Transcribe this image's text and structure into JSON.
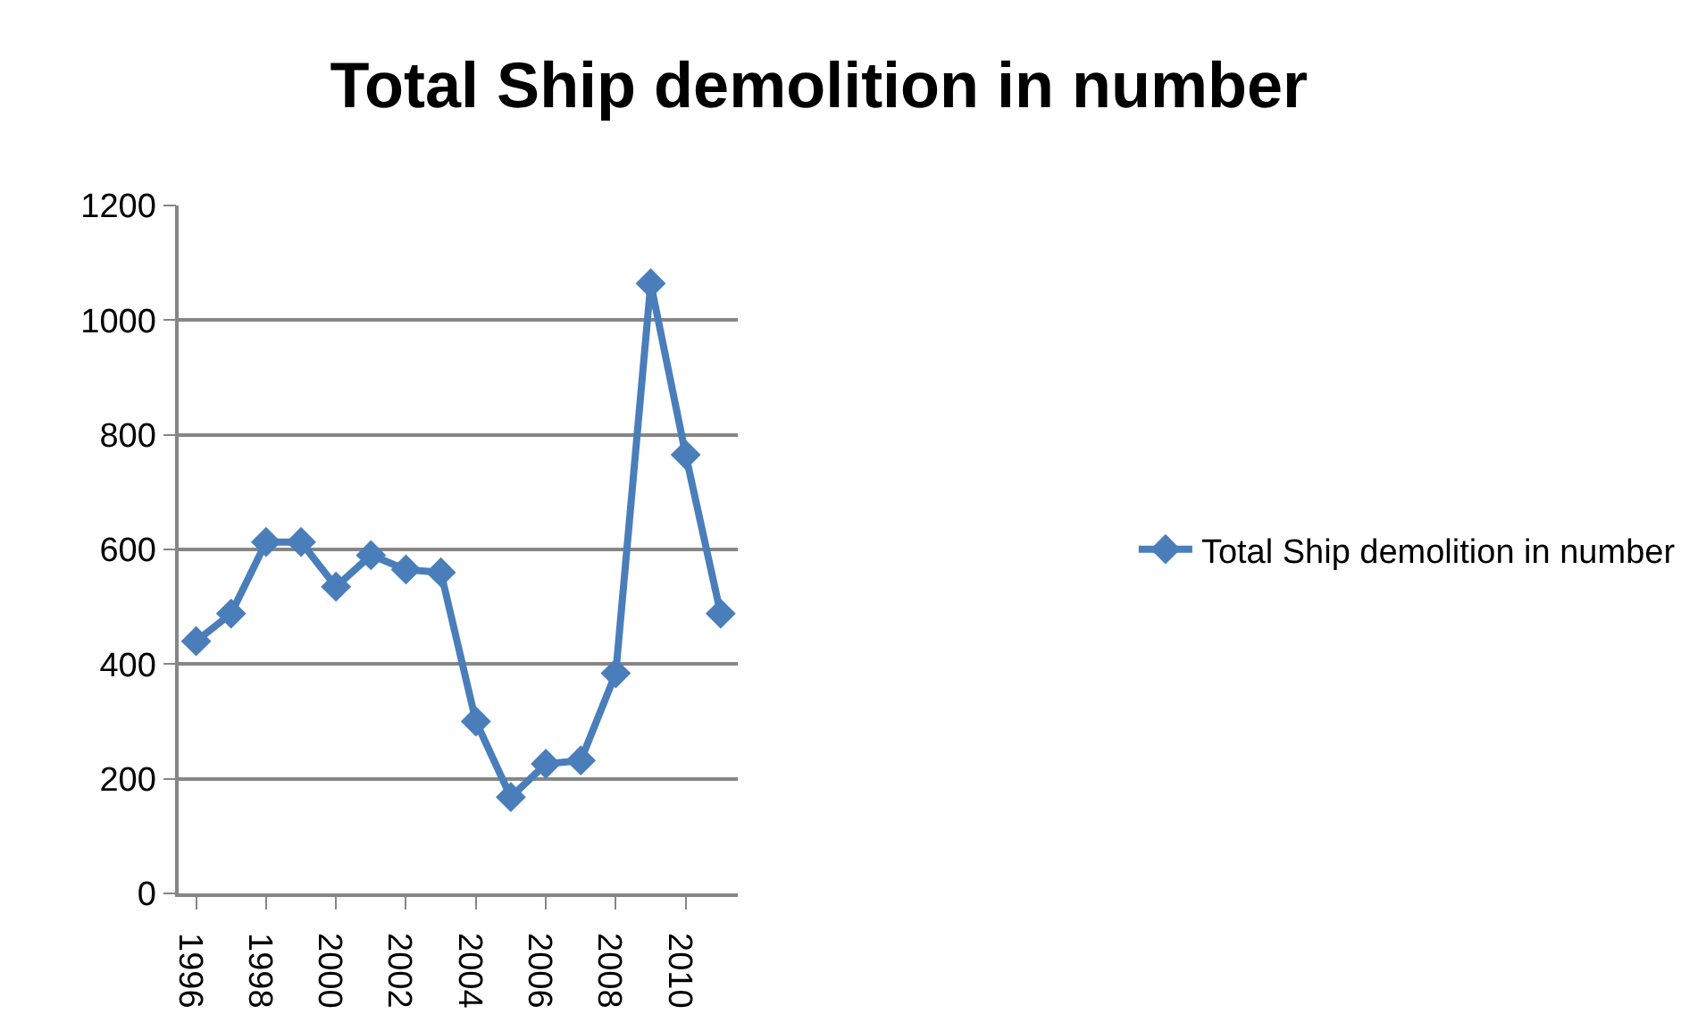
{
  "chart_data": {
    "type": "line",
    "title": "Total Ship demolition in number",
    "categories": [
      "1996",
      null,
      "1998",
      null,
      "2000",
      null,
      "2002",
      null,
      "2004",
      null,
      "2006",
      null,
      "2008",
      null,
      "2010",
      null
    ],
    "series": [
      {
        "name": "Total Ship demolition in number",
        "color": "#4a7ebb",
        "values": [
          440,
          488,
          613,
          613,
          535,
          590,
          565,
          560,
          300,
          168,
          226,
          232,
          384,
          1064,
          765,
          488
        ]
      }
    ],
    "ylim": [
      0,
      1200
    ],
    "yticks": [
      0,
      200,
      400,
      600,
      800,
      1000,
      1200
    ],
    "grid": "y",
    "legend": "right",
    "marker": "diamond",
    "line_style": "solid"
  }
}
